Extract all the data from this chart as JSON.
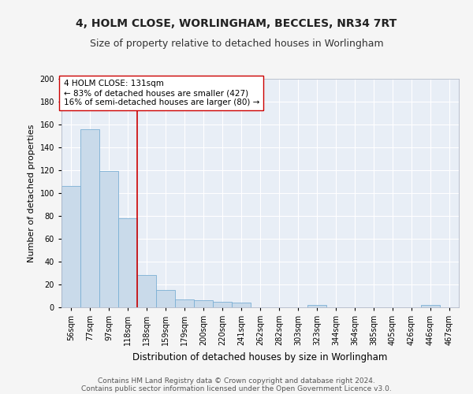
{
  "title": "4, HOLM CLOSE, WORLINGHAM, BECCLES, NR34 7RT",
  "subtitle": "Size of property relative to detached houses in Worlingham",
  "xlabel": "Distribution of detached houses by size in Worlingham",
  "ylabel": "Number of detached properties",
  "categories": [
    "56sqm",
    "77sqm",
    "97sqm",
    "118sqm",
    "138sqm",
    "159sqm",
    "179sqm",
    "200sqm",
    "220sqm",
    "241sqm",
    "262sqm",
    "282sqm",
    "303sqm",
    "323sqm",
    "344sqm",
    "364sqm",
    "385sqm",
    "405sqm",
    "426sqm",
    "446sqm",
    "467sqm"
  ],
  "values": [
    106,
    156,
    119,
    78,
    28,
    15,
    7,
    6,
    5,
    4,
    0,
    0,
    0,
    2,
    0,
    0,
    0,
    0,
    0,
    2,
    0
  ],
  "bar_color": "#c9daea",
  "bar_edge_color": "#7bafd4",
  "background_color": "#f5f5f5",
  "plot_bg_color": "#e8eef6",
  "grid_color": "#ffffff",
  "vline_x": 3.5,
  "vline_color": "#cc0000",
  "annotation_line1": "4 HOLM CLOSE: 131sqm",
  "annotation_line2": "← 83% of detached houses are smaller (427)",
  "annotation_line3": "16% of semi-detached houses are larger (80) →",
  "annotation_box_color": "#ffffff",
  "annotation_box_edge": "#cc0000",
  "ylim": [
    0,
    200
  ],
  "yticks": [
    0,
    20,
    40,
    60,
    80,
    100,
    120,
    140,
    160,
    180,
    200
  ],
  "footer_line1": "Contains HM Land Registry data © Crown copyright and database right 2024.",
  "footer_line2": "Contains public sector information licensed under the Open Government Licence v3.0.",
  "title_fontsize": 10,
  "subtitle_fontsize": 9,
  "xlabel_fontsize": 8.5,
  "ylabel_fontsize": 8,
  "tick_fontsize": 7,
  "annotation_fontsize": 7.5,
  "footer_fontsize": 6.5
}
